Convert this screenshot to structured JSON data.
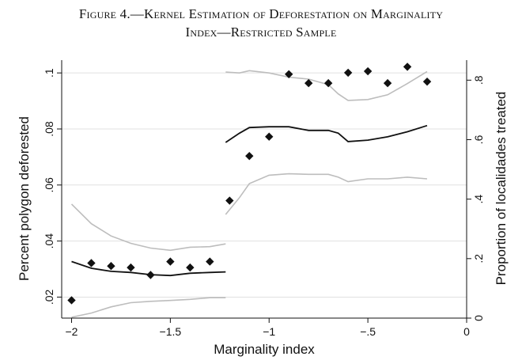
{
  "caption": {
    "line1": "Figure 4.—Kernel Estimation of Deforestation on Marginality",
    "line2": "Index—Restricted Sample"
  },
  "chart_data": {
    "type": "scatter",
    "xlabel": "Marginality index",
    "ylabel_left": "Percent polygon deforested",
    "ylabel_right": "Proportion of localidades treated",
    "xlim": [
      -2.05,
      0.0
    ],
    "ylim_left": [
      0.0125,
      0.104
    ],
    "ylim_right": [
      0.0,
      0.862
    ],
    "x_ticks": [
      {
        "value": -2,
        "label": "−2"
      },
      {
        "value": -1.5,
        "label": "−1.5"
      },
      {
        "value": -1,
        "label": "−1"
      },
      {
        "value": -0.5,
        "label": "−.5"
      },
      {
        "value": 0,
        "label": "0"
      }
    ],
    "y_left_ticks": [
      {
        "value": 0.02,
        "label": ".02"
      },
      {
        "value": 0.04,
        "label": ".04"
      },
      {
        "value": 0.06,
        "label": ".06"
      },
      {
        "value": 0.08,
        "label": ".08"
      },
      {
        "value": 0.1,
        "label": ".1"
      }
    ],
    "y_right_ticks": [
      {
        "value": 0,
        "label": "0"
      },
      {
        "value": 0.2,
        "label": ".2"
      },
      {
        "value": 0.4,
        "label": ".4"
      },
      {
        "value": 0.6,
        "label": ".6"
      },
      {
        "value": 0.8,
        "label": ".8"
      }
    ],
    "grid": "horizontal",
    "colors": {
      "points": "#111111",
      "estimate": "#111111",
      "ci": "#bdbdbd",
      "grid": "#e0e0e0",
      "axis": "#111111"
    },
    "points_right_axis": [
      {
        "x": -2.0,
        "y": 0.06
      },
      {
        "x": -1.9,
        "y": 0.185
      },
      {
        "x": -1.8,
        "y": 0.175
      },
      {
        "x": -1.7,
        "y": 0.17
      },
      {
        "x": -1.6,
        "y": 0.145
      },
      {
        "x": -1.5,
        "y": 0.19
      },
      {
        "x": -1.4,
        "y": 0.17
      },
      {
        "x": -1.3,
        "y": 0.19
      },
      {
        "x": -1.2,
        "y": 0.395
      },
      {
        "x": -1.1,
        "y": 0.545
      },
      {
        "x": -1.0,
        "y": 0.61
      },
      {
        "x": -0.9,
        "y": 0.82
      },
      {
        "x": -0.8,
        "y": 0.79
      },
      {
        "x": -0.7,
        "y": 0.79
      },
      {
        "x": -0.6,
        "y": 0.825
      },
      {
        "x": -0.5,
        "y": 0.83
      },
      {
        "x": -0.4,
        "y": 0.79
      },
      {
        "x": -0.3,
        "y": 0.845
      },
      {
        "x": -0.2,
        "y": 0.795
      }
    ],
    "estimate_left_axis": [
      [
        [
          -2.0,
          0.0327
        ],
        [
          -1.9,
          0.0303
        ],
        [
          -1.8,
          0.0292
        ],
        [
          -1.7,
          0.0288
        ],
        [
          -1.6,
          0.028
        ],
        [
          -1.5,
          0.0277
        ],
        [
          -1.4,
          0.0285
        ],
        [
          -1.3,
          0.0288
        ],
        [
          -1.22,
          0.029
        ]
      ],
      [
        [
          -1.22,
          0.0752
        ],
        [
          -1.15,
          0.0785
        ],
        [
          -1.1,
          0.0805
        ],
        [
          -1.0,
          0.0808
        ],
        [
          -0.9,
          0.0808
        ],
        [
          -0.8,
          0.0795
        ],
        [
          -0.7,
          0.0795
        ],
        [
          -0.65,
          0.0785
        ],
        [
          -0.6,
          0.0755
        ],
        [
          -0.5,
          0.076
        ],
        [
          -0.4,
          0.0772
        ],
        [
          -0.3,
          0.079
        ],
        [
          -0.2,
          0.0812
        ]
      ]
    ],
    "ci_upper_left_axis": [
      [
        [
          -2.0,
          0.0532
        ],
        [
          -1.9,
          0.0462
        ],
        [
          -1.8,
          0.0418
        ],
        [
          -1.7,
          0.0392
        ],
        [
          -1.6,
          0.0375
        ],
        [
          -1.5,
          0.0367
        ],
        [
          -1.4,
          0.0378
        ],
        [
          -1.3,
          0.038
        ],
        [
          -1.22,
          0.039
        ]
      ],
      [
        [
          -1.22,
          0.1003
        ],
        [
          -1.15,
          0.1
        ],
        [
          -1.1,
          0.1008
        ],
        [
          -1.0,
          0.1
        ],
        [
          -0.9,
          0.0985
        ],
        [
          -0.8,
          0.0978
        ],
        [
          -0.7,
          0.0958
        ],
        [
          -0.65,
          0.0925
        ],
        [
          -0.6,
          0.0902
        ],
        [
          -0.5,
          0.0905
        ],
        [
          -0.4,
          0.0922
        ],
        [
          -0.3,
          0.0962
        ],
        [
          -0.2,
          0.1005
        ]
      ]
    ],
    "ci_lower_left_axis": [
      [
        [
          -2.0,
          0.0128
        ],
        [
          -1.9,
          0.0143
        ],
        [
          -1.8,
          0.0165
        ],
        [
          -1.7,
          0.018
        ],
        [
          -1.6,
          0.0185
        ],
        [
          -1.5,
          0.0188
        ],
        [
          -1.4,
          0.0192
        ],
        [
          -1.3,
          0.0198
        ],
        [
          -1.22,
          0.0198
        ]
      ],
      [
        [
          -1.22,
          0.0495
        ],
        [
          -1.15,
          0.0555
        ],
        [
          -1.1,
          0.0605
        ],
        [
          -1.0,
          0.0635
        ],
        [
          -0.9,
          0.064
        ],
        [
          -0.8,
          0.0638
        ],
        [
          -0.7,
          0.0638
        ],
        [
          -0.65,
          0.0628
        ],
        [
          -0.6,
          0.0612
        ],
        [
          -0.5,
          0.0622
        ],
        [
          -0.4,
          0.0622
        ],
        [
          -0.3,
          0.0628
        ],
        [
          -0.2,
          0.0622
        ]
      ]
    ]
  }
}
